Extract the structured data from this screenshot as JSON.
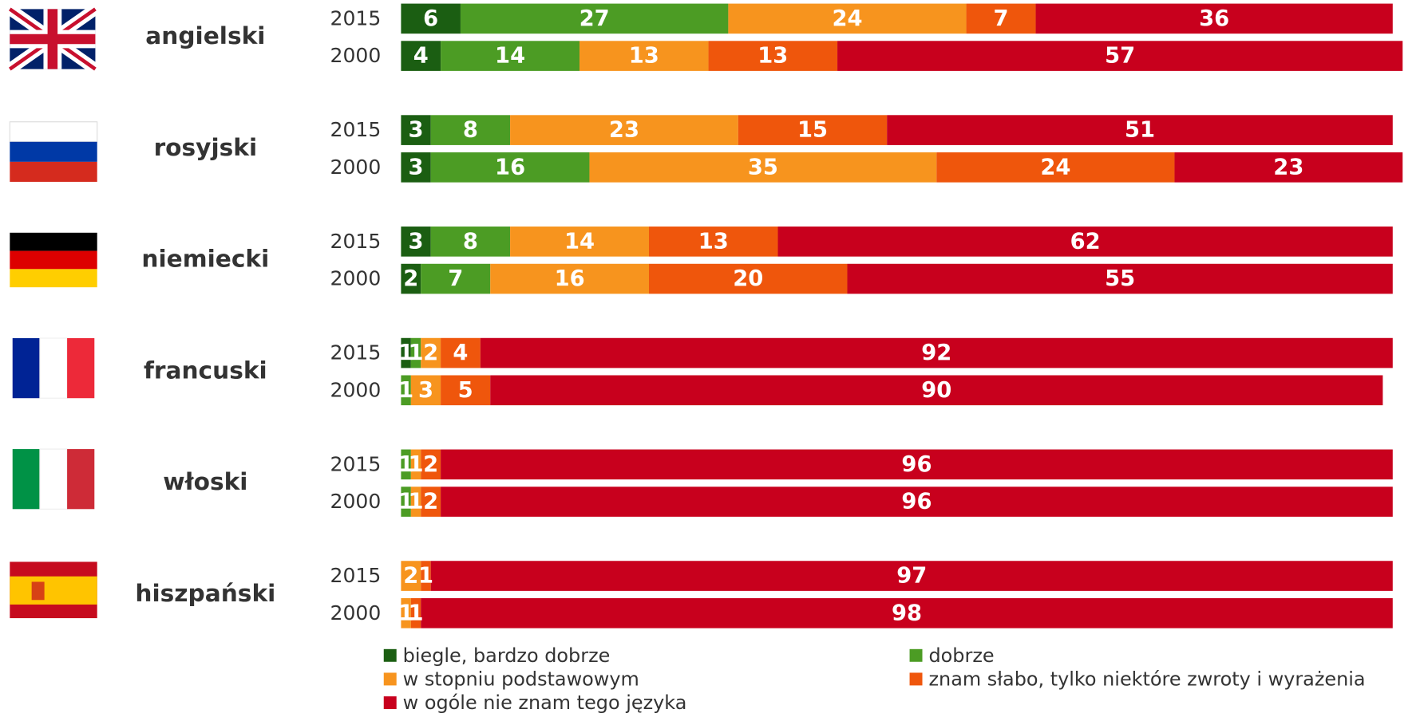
{
  "chart_data": {
    "type": "stacked_bar",
    "groups": [
      {
        "name": "angielski",
        "years": [
          "2015",
          "2000"
        ]
      },
      {
        "name": "rosyjski",
        "years": [
          "2015",
          "2000"
        ]
      },
      {
        "name": "niemiecki",
        "years": [
          "2015",
          "2000"
        ]
      },
      {
        "name": "francuski",
        "years": [
          "2015",
          "2000"
        ]
      },
      {
        "name": "włoski",
        "years": [
          "2015",
          "2000"
        ]
      },
      {
        "name": "hiszpański",
        "years": [
          "2015",
          "2000"
        ]
      }
    ],
    "xlim": [
      0,
      100
    ],
    "series": [
      {
        "name": "biegle, bardzo dobrze",
        "color": "#1b5e12",
        "values": [
          6,
          4,
          3,
          3,
          3,
          2,
          1,
          null,
          null,
          null,
          null,
          null
        ]
      },
      {
        "name": "dobrze",
        "color": "#4c9c24",
        "values": [
          27,
          14,
          8,
          16,
          8,
          7,
          1,
          1,
          1,
          1,
          null,
          null
        ]
      },
      {
        "name": "w stopniu podstawowym",
        "color": "#f7941e",
        "values": [
          24,
          13,
          23,
          35,
          14,
          16,
          2,
          3,
          1,
          1,
          2,
          1
        ]
      },
      {
        "name": "znam słabo, tylko niektóre zwroty i wyrażenia",
        "color": "#ef560c",
        "values": [
          7,
          13,
          15,
          24,
          13,
          20,
          4,
          5,
          2,
          2,
          1,
          1
        ]
      },
      {
        "name": "w ogóle nie znam tego języka",
        "color": "#c8001d",
        "values": [
          36,
          57,
          51,
          23,
          62,
          55,
          92,
          90,
          96,
          96,
          97,
          98
        ]
      }
    ]
  }
}
